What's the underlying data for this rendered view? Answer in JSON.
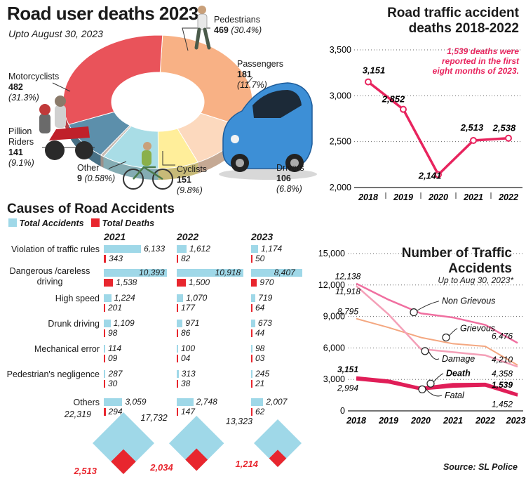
{
  "donut": {
    "title": "Road user deaths 2023",
    "subtitle": "Upto August 30, 2023",
    "segments": [
      {
        "name": "Pedestrians",
        "value": "469",
        "pct": "(30.4%)",
        "color": "#f8b185"
      },
      {
        "name": "Passengers",
        "value": "181",
        "pct": "(11.7%)",
        "color": "#fcd9be"
      },
      {
        "name": "Drivers",
        "value": "106",
        "pct": "(6.8%)",
        "color": "#ffee9a"
      },
      {
        "name": "Cyclists",
        "value": "151",
        "pct": "(9.8%)",
        "color": "#a9dde6"
      },
      {
        "name": "Other",
        "value": "9",
        "pct": "(0.58%)",
        "color": "#c7b9b0"
      },
      {
        "name": "Pillion Riders",
        "value": "141",
        "pct": "(9.1%)",
        "color": "#5c8fab"
      },
      {
        "name": "Motorcyclists",
        "value": "482",
        "pct": "(31.3%)",
        "color": "#e9535a"
      }
    ]
  },
  "trend": {
    "title_line1": "Road traffic accident",
    "title_line2": "deaths 2018-2022",
    "note": "1,539 deaths were reported in the first eight months of 2023.",
    "color": "#e8245e"
  },
  "causes": {
    "title": "Causes of Road Accidents",
    "legend_total": "Total Accidents",
    "legend_deaths": "Total Deaths",
    "color_total": "#9fd8e8",
    "color_deaths": "#e8262e",
    "years": [
      "2021",
      "2022",
      "2023"
    ],
    "rows": [
      {
        "label": "Violation of traffic rules",
        "acc": [
          "6,133",
          "1,612",
          "1,174"
        ],
        "dth": [
          "343",
          "82",
          "50"
        ],
        "accv": [
          6133,
          1612,
          1174
        ],
        "dthv": [
          343,
          82,
          50
        ]
      },
      {
        "label": "Dangerous /careless driving",
        "acc": [
          "10,393",
          "10,918",
          "8,407"
        ],
        "dth": [
          "1,538",
          "1,500",
          "970"
        ],
        "accv": [
          10393,
          10918,
          8407
        ],
        "dthv": [
          1538,
          1500,
          970
        ]
      },
      {
        "label": "High speed",
        "acc": [
          "1,224",
          "1,070",
          "719"
        ],
        "dth": [
          "201",
          "177",
          "64"
        ],
        "accv": [
          1224,
          1070,
          719
        ],
        "dthv": [
          201,
          177,
          64
        ]
      },
      {
        "label": "Drunk driving",
        "acc": [
          "1,109",
          "971",
          "673"
        ],
        "dth": [
          "98",
          "86",
          "44"
        ],
        "accv": [
          1109,
          971,
          673
        ],
        "dthv": [
          98,
          86,
          44
        ]
      },
      {
        "label": "Mechanical error",
        "acc": [
          "114",
          "100",
          "98"
        ],
        "dth": [
          "09",
          "04",
          "03"
        ],
        "accv": [
          114,
          100,
          98
        ],
        "dthv": [
          9,
          4,
          3
        ]
      },
      {
        "label": "Pedestrian's negligence",
        "acc": [
          "287",
          "313",
          "245"
        ],
        "dth": [
          "30",
          "38",
          "21"
        ],
        "accv": [
          287,
          313,
          245
        ],
        "dthv": [
          30,
          38,
          21
        ]
      },
      {
        "label": "Others",
        "acc": [
          "3,059",
          "2,748",
          "2,007"
        ],
        "dth": [
          "294",
          "147",
          "62"
        ],
        "accv": [
          3059,
          2748,
          2007
        ],
        "dthv": [
          294,
          147,
          62
        ]
      }
    ],
    "totals": [
      {
        "acc": "22,319",
        "dth": "2,513",
        "accv": 22319,
        "dthv": 2513
      },
      {
        "acc": "17,732",
        "dth": "2,034",
        "accv": 17732,
        "dthv": 2034
      },
      {
        "acc": "13,323",
        "dth": "1,214",
        "accv": 13323,
        "dthv": 1214
      }
    ]
  },
  "accidents": {
    "title_line1": "Number of Traffic",
    "title_line2": "Accidents",
    "subtitle": "Up to Aug 30, 2023*",
    "series_labels": [
      "Non Grievous",
      "Grievous",
      "Damage",
      "Death",
      "Fatal"
    ],
    "colors": {
      "Non Grievous": "#f06fa0",
      "Grievous": "#f4a780",
      "Damage": "#f4a0b8",
      "Death": "#e01e58",
      "Fatal": "#e01e58"
    }
  },
  "source": "Source: SL Police",
  "chart_data": [
    {
      "type": "pie",
      "title": "Road user deaths 2023",
      "subtitle": "Upto August 30, 2023",
      "labels": [
        "Pedestrians",
        "Passengers",
        "Drivers",
        "Cyclists",
        "Other",
        "Pillion Riders",
        "Motorcyclists"
      ],
      "values": [
        469,
        181,
        106,
        151,
        9,
        141,
        482
      ]
    },
    {
      "type": "line",
      "title": "Road traffic accident deaths 2018-2022",
      "x": [
        "2018",
        "2019",
        "2020",
        "2021",
        "2022"
      ],
      "y_labels": [
        "3,151",
        "2,852",
        "2,141",
        "2,513",
        "2,538"
      ],
      "series": [
        {
          "values": [
            3151,
            2852,
            2141,
            2513,
            2538
          ]
        }
      ],
      "ylim": [
        2000,
        3500
      ],
      "yticks": [
        "2,000",
        "2,500",
        "3,000",
        "3,500"
      ]
    },
    {
      "type": "bar",
      "title": "Causes of Road Accidents",
      "categories": [
        "Violation of traffic rules",
        "Dangerous /careless driving",
        "High speed",
        "Drunk driving",
        "Mechanical error",
        "Pedestrian's negligence",
        "Others"
      ],
      "series": [
        {
          "name": "Total Accidents 2021",
          "values": [
            6133,
            10393,
            1224,
            1109,
            114,
            287,
            3059
          ]
        },
        {
          "name": "Total Deaths 2021",
          "values": [
            343,
            1538,
            201,
            98,
            9,
            30,
            294
          ]
        },
        {
          "name": "Total Accidents 2022",
          "values": [
            1612,
            10918,
            1070,
            971,
            100,
            313,
            2748
          ]
        },
        {
          "name": "Total Deaths 2022",
          "values": [
            82,
            1500,
            177,
            86,
            4,
            38,
            147
          ]
        },
        {
          "name": "Total Accidents 2023",
          "values": [
            1174,
            8407,
            719,
            673,
            98,
            245,
            2007
          ]
        },
        {
          "name": "Total Deaths 2023",
          "values": [
            50,
            970,
            64,
            44,
            3,
            21,
            62
          ]
        }
      ]
    },
    {
      "type": "line",
      "title": "Number of Traffic Accidents",
      "subtitle": "Up to Aug 30, 2023*",
      "x": [
        "2018",
        "2019",
        "2020",
        "2021",
        "2022",
        "2023*"
      ],
      "ylim": [
        0,
        15000
      ],
      "yticks": [
        "0",
        "3,000",
        "6,000",
        "9,000",
        "12,000",
        "15,000"
      ],
      "value_labels": [
        "12,138",
        "11,918",
        "8,795",
        "3,151",
        "2,994",
        "6,476",
        "4,358",
        "4,210",
        "1,539",
        "1,452"
      ],
      "series": [
        {
          "name": "Non Grievous",
          "values": [
            12138,
            10600,
            9300,
            8900,
            8200,
            6476
          ]
        },
        {
          "name": "Grievous",
          "values": [
            8795,
            7950,
            7000,
            6400,
            6150,
            4358
          ]
        },
        {
          "name": "Damage",
          "values": [
            11918,
            9200,
            5900,
            5600,
            5300,
            4210
          ]
        },
        {
          "name": "Death",
          "values": [
            3151,
            2850,
            2141,
            2513,
            2538,
            1539
          ]
        },
        {
          "name": "Fatal",
          "values": [
            2994,
            2700,
            2050,
            2300,
            2400,
            1452
          ]
        }
      ]
    }
  ]
}
